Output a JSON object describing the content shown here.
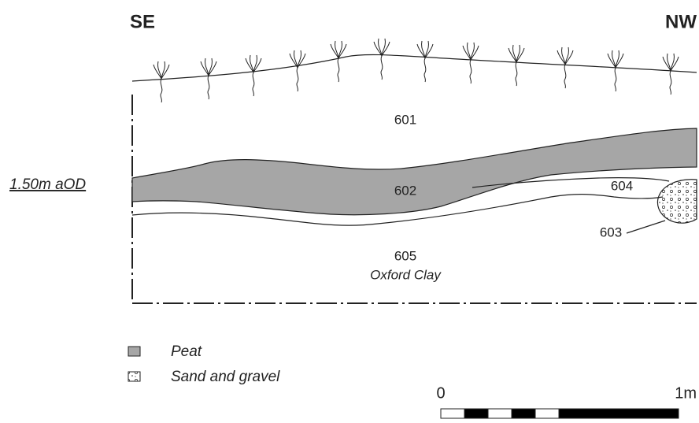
{
  "header": {
    "left": "SE",
    "right": "NW"
  },
  "datum": "1.50m aOD",
  "layers": [
    {
      "label": "601"
    },
    {
      "label": "602"
    },
    {
      "label": "603"
    },
    {
      "label": "604"
    },
    {
      "label": "605",
      "note": "Oxford Clay"
    }
  ],
  "legend": [
    {
      "label": "Peat"
    },
    {
      "label": "Sand and gravel"
    }
  ],
  "scale": {
    "start": "0",
    "end": "1m"
  }
}
